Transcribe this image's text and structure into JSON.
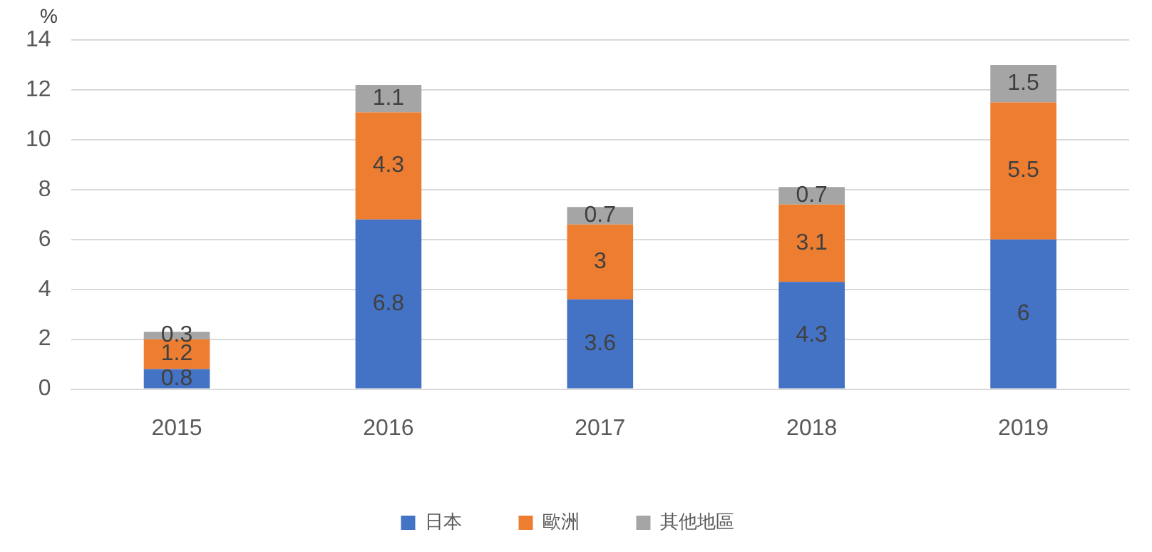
{
  "chart_data": {
    "type": "bar",
    "ylabel": "%",
    "categories": [
      "2015",
      "2016",
      "2017",
      "2018",
      "2019"
    ],
    "stacked": true,
    "series": [
      {
        "name": "日本",
        "color": "#4472c4",
        "values": [
          0.8,
          6.8,
          3.6,
          4.3,
          6
        ]
      },
      {
        "name": "歐洲",
        "color": "#ed7d31",
        "values": [
          1.2,
          4.3,
          3,
          3.1,
          5.5
        ]
      },
      {
        "name": "其他地區",
        "color": "#a5a5a5",
        "values": [
          0.3,
          1.1,
          0.7,
          0.7,
          1.5
        ]
      }
    ],
    "ylim": [
      0,
      14
    ],
    "yticks": [
      0,
      2,
      4,
      6,
      8,
      10,
      12,
      14
    ],
    "grid": "y",
    "legend": "bottom",
    "data_labels": true
  }
}
